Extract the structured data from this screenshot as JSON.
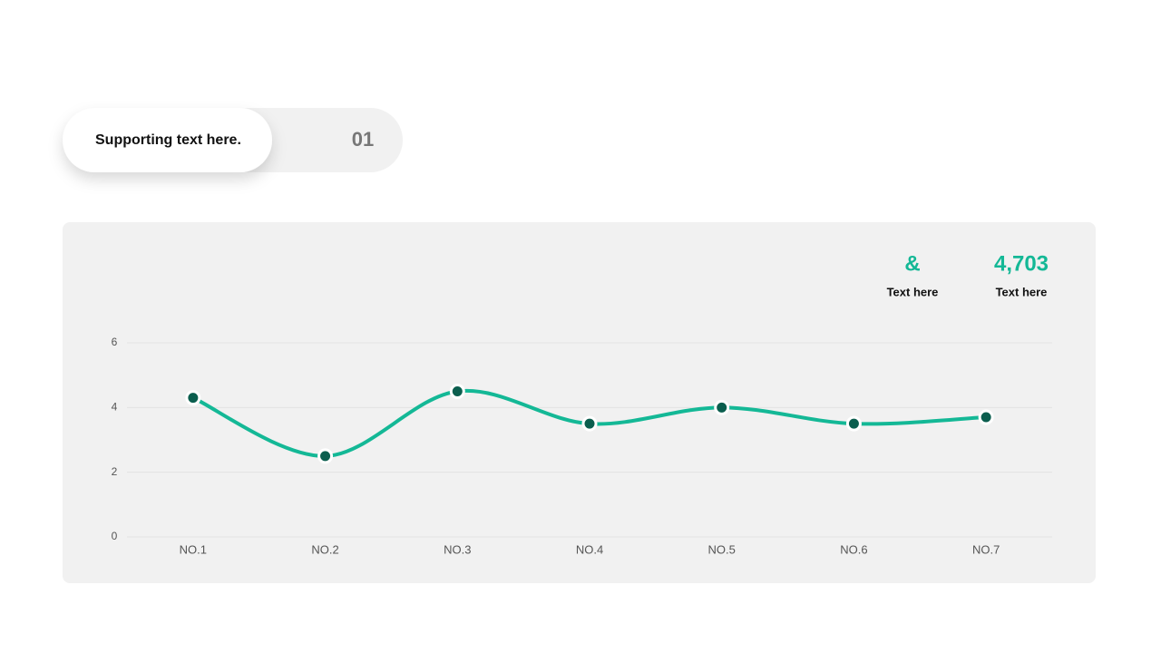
{
  "header": {
    "label": "Supporting text here.",
    "number": "01"
  },
  "stats": [
    {
      "value": "&",
      "label": "Text here"
    },
    {
      "value": "4,703",
      "label": "Text here"
    }
  ],
  "chart_data": {
    "type": "line",
    "categories": [
      "NO.1",
      "NO.2",
      "NO.3",
      "NO.4",
      "NO.5",
      "NO.6",
      "NO.7"
    ],
    "values": [
      4.3,
      2.5,
      4.5,
      3.5,
      4.0,
      3.5,
      3.7
    ],
    "color": "#14b896",
    "marker_color": "#0b5e4e",
    "ylim": [
      0,
      6
    ],
    "yticks": [
      0,
      2,
      4,
      6
    ],
    "grid": true,
    "smooth": true
  }
}
